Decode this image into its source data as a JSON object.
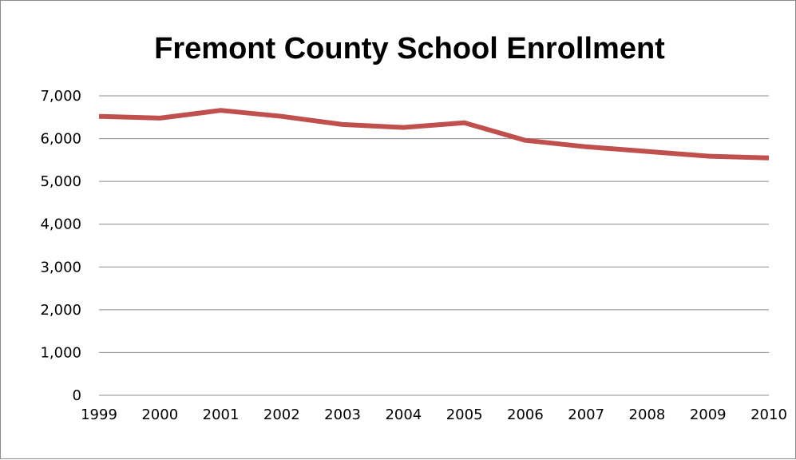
{
  "chart_data": {
    "type": "line",
    "title": "Fremont County School Enrollment",
    "xlabel": "",
    "ylabel": "",
    "categories": [
      "1999",
      "2000",
      "2001",
      "2002",
      "2003",
      "2004",
      "2005",
      "2006",
      "2007",
      "2008",
      "2009",
      "2010"
    ],
    "series": [
      {
        "values": [
          6520,
          6480,
          6660,
          6520,
          6330,
          6260,
          6370,
          5960,
          5810,
          5700,
          5590,
          5550
        ],
        "color": "#c0504d"
      }
    ],
    "ylim": [
      0,
      7000
    ],
    "yticks": [
      0,
      1000,
      2000,
      3000,
      4000,
      5000,
      6000,
      7000
    ],
    "ytick_labels": [
      "0",
      "1,000",
      "2,000",
      "3,000",
      "4,000",
      "5,000",
      "6,000",
      "7,000"
    ],
    "grid": true,
    "legend": "none",
    "colors": {
      "line": "#c0504d",
      "grid": "#8c8c8c",
      "border": "#8c8c8c"
    }
  }
}
